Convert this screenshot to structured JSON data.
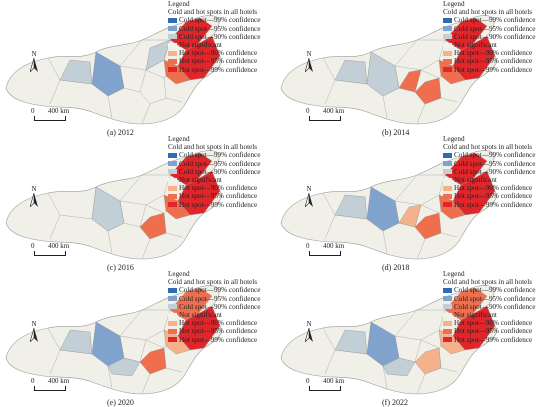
{
  "legend": {
    "title": "Legend",
    "subtitle": "Cold and hot spots in all hotels",
    "items": [
      {
        "label": "Cold spot—99% confidence",
        "color": "#2e6db3"
      },
      {
        "label": "Cold spot—95% confidence",
        "color": "#7fa3cc"
      },
      {
        "label": "Cold spot—90% confidence",
        "color": "#c3cfd6"
      },
      {
        "label": "Not significant",
        "color": "#f3f2ea"
      },
      {
        "label": "Hot spot—90% confidence",
        "color": "#f5b28a"
      },
      {
        "label": "Hot spot—95% confidence",
        "color": "#ee6e4d"
      },
      {
        "label": "Hot spot—99% confidence",
        "color": "#e0262b"
      }
    ]
  },
  "north_label": "N",
  "scale": {
    "zero": "0",
    "distance": "400 km"
  },
  "panels": [
    {
      "id": "a",
      "caption": "(a) 2012"
    },
    {
      "id": "b",
      "caption": "(b) 2014"
    },
    {
      "id": "c",
      "caption": "(c) 2016"
    },
    {
      "id": "d",
      "caption": "(d) 2018"
    },
    {
      "id": "e",
      "caption": "(e) 2020"
    },
    {
      "id": "f",
      "caption": "(f) 2022"
    }
  ],
  "colors": {
    "region_fill": "#f1f0e8",
    "region_stroke": "#9a9a9a"
  }
}
